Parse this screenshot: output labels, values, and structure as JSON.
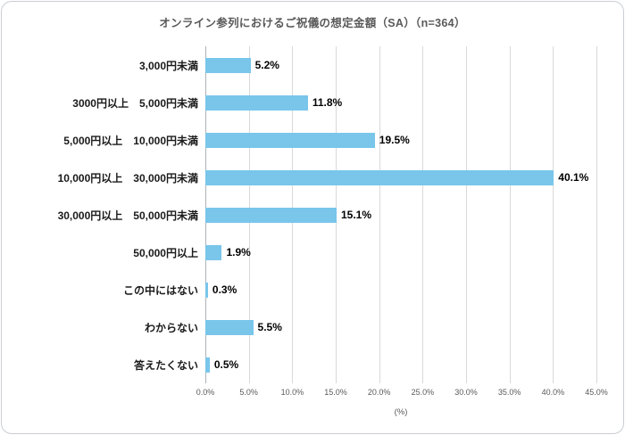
{
  "chart_data": {
    "type": "bar",
    "orientation": "horizontal",
    "title": "オンライン参列におけるご祝儀の想定金額（SA）（n=364）",
    "categories": [
      "3,000円未満",
      "3000円以上　5,000円未満",
      "5,000円以上　10,000円未満",
      "10,000円以上　30,000円未満",
      "30,000円以上　50,000円未満",
      "50,000円以上",
      "この中にはない",
      "わからない",
      "答えたくない"
    ],
    "values": [
      5.2,
      11.8,
      19.5,
      40.1,
      15.1,
      1.9,
      0.3,
      5.5,
      0.5
    ],
    "value_labels": [
      "5.2%",
      "11.8%",
      "19.5%",
      "40.1%",
      "15.1%",
      "1.9%",
      "0.3%",
      "5.5%",
      "0.5%"
    ],
    "xlim": [
      0,
      45
    ],
    "x_tick_values": [
      0,
      5,
      10,
      15,
      20,
      25,
      30,
      35,
      40,
      45
    ],
    "x_ticks": [
      "0.0%",
      "5.0%",
      "10.0%",
      "15.0%",
      "20.0%",
      "25.0%",
      "30.0%",
      "35.0%",
      "40.0%",
      "45.0%"
    ],
    "xlabel": "(%)",
    "grid": "vertical",
    "legend": "none",
    "bar_color": "#79C6EA"
  }
}
